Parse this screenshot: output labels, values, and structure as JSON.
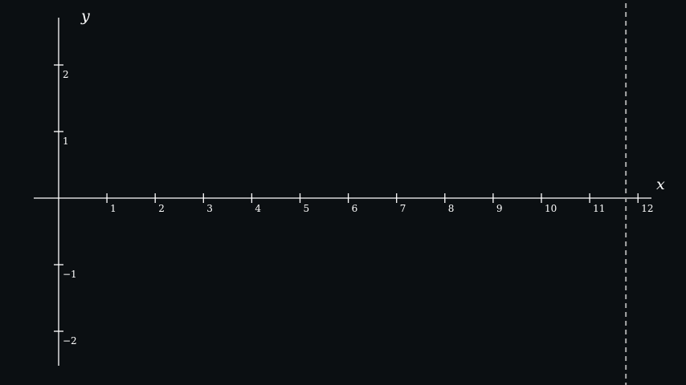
{
  "colors": {
    "background": "#0b0f12",
    "axis": "#ffffff",
    "marker_line": "#aaaaaa"
  },
  "chart_data": {
    "type": "line",
    "title": "",
    "xlabel": "x",
    "ylabel": "y",
    "xlim": [
      0,
      12
    ],
    "ylim": [
      -2.5,
      2.5
    ],
    "grid": false,
    "x_ticks": [
      1,
      2,
      3,
      4,
      5,
      6,
      7,
      8,
      9,
      10,
      11,
      12
    ],
    "y_ticks": [
      2,
      1,
      -1,
      -2
    ],
    "x_tick_labels": [
      "1",
      "2",
      "3",
      "4",
      "5",
      "6",
      "7",
      "8",
      "9",
      "10",
      "11",
      "12"
    ],
    "y_tick_labels": [
      "2",
      "1",
      "−1",
      "−2"
    ],
    "series": [],
    "vertical_marker": {
      "x": 11.75,
      "style": "dashed"
    }
  }
}
